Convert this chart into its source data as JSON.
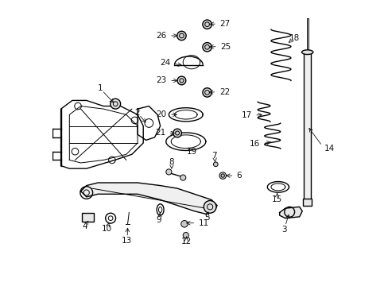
{
  "background_color": "#ffffff",
  "line_color": "#000000",
  "label_color": "#111111",
  "fig_width": 4.89,
  "fig_height": 3.6,
  "dpi": 100
}
